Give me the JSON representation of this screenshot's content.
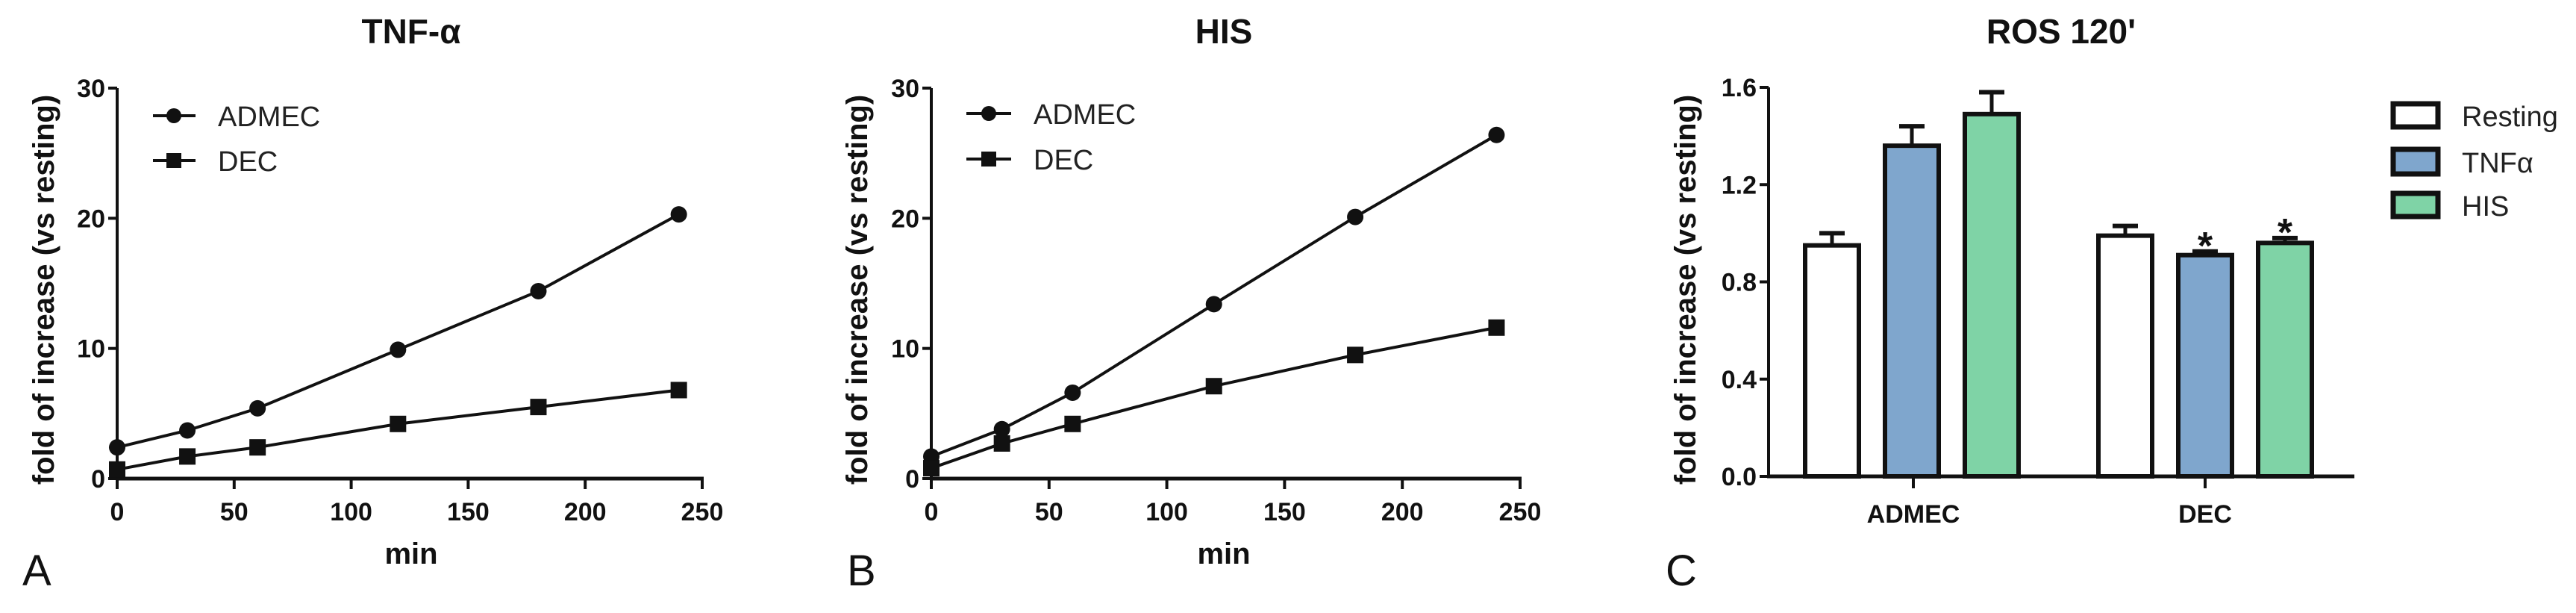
{
  "figure": {
    "background": "#ffffff",
    "panels": [
      {
        "letter": "A",
        "title": "TNF-α",
        "xlabel": "min",
        "ylabel": "fold of increase (vs resting)"
      },
      {
        "letter": "B",
        "title": "HIS",
        "xlabel": "min",
        "ylabel": "fold of increase (vs resting)"
      },
      {
        "letter": "C",
        "title": "ROS 120'",
        "xlabel": "",
        "ylabel": "fold of increase (vs resting)"
      }
    ]
  },
  "colors": {
    "resting": "#ffffff",
    "tnfa": "#7fa6cd",
    "his": "#7fd3a6",
    "line": "#111111"
  },
  "chart_data": [
    {
      "panel": "A",
      "type": "line",
      "title": "TNF-α",
      "xlabel": "min",
      "ylabel": "fold of increase (vs resting)",
      "x": [
        0,
        30,
        60,
        120,
        180,
        240
      ],
      "xlim": [
        0,
        250
      ],
      "ylim": [
        0,
        30
      ],
      "xticks": [
        0,
        50,
        100,
        150,
        200,
        250
      ],
      "yticks": [
        0,
        10,
        20,
        30
      ],
      "grid": false,
      "legend_position": "upper left",
      "series": [
        {
          "name": "ADMEC",
          "marker": "circle",
          "values": [
            2.4,
            3.7,
            5.4,
            9.9,
            14.4,
            20.3
          ]
        },
        {
          "name": "DEC",
          "marker": "square",
          "values": [
            0.7,
            1.7,
            2.4,
            4.2,
            5.5,
            6.8
          ]
        }
      ]
    },
    {
      "panel": "B",
      "type": "line",
      "title": "HIS",
      "xlabel": "min",
      "ylabel": "fold of increase (vs resting)",
      "x": [
        0,
        30,
        60,
        120,
        180,
        240
      ],
      "xlim": [
        0,
        250
      ],
      "ylim": [
        0,
        30
      ],
      "xticks": [
        0,
        50,
        100,
        150,
        200,
        250
      ],
      "yticks": [
        0,
        10,
        20,
        30
      ],
      "grid": false,
      "legend_position": "upper left",
      "series": [
        {
          "name": "ADMEC",
          "marker": "circle",
          "values": [
            1.7,
            3.8,
            6.6,
            13.4,
            20.1,
            26.4
          ]
        },
        {
          "name": "DEC",
          "marker": "square",
          "values": [
            0.8,
            2.7,
            4.2,
            7.1,
            9.5,
            11.6
          ]
        }
      ]
    },
    {
      "panel": "C",
      "type": "bar",
      "title": "ROS 120'",
      "xlabel": "",
      "ylabel": "fold of increase (vs resting)",
      "categories": [
        "ADMEC",
        "DEC"
      ],
      "ylim": [
        0,
        1.6
      ],
      "yticks": [
        "0.0",
        "0.4",
        "0.8",
        "1.2",
        "1.6"
      ],
      "grid": false,
      "legend_position": "right",
      "series": [
        {
          "name": "Resting",
          "color": "#ffffff",
          "values": [
            0.95,
            0.99
          ],
          "errors": [
            0.05,
            0.04
          ]
        },
        {
          "name": "TNFα",
          "color": "#7fa6cd",
          "values": [
            1.36,
            0.91
          ],
          "errors": [
            0.08,
            0.015
          ]
        },
        {
          "name": "HIS",
          "color": "#7fd3a6",
          "values": [
            1.49,
            0.96
          ],
          "errors": [
            0.09,
            0.02
          ]
        }
      ],
      "annotations": [
        {
          "text": "*",
          "category": "DEC",
          "series": "TNFα"
        },
        {
          "text": "*",
          "category": "DEC",
          "series": "HIS"
        }
      ]
    }
  ]
}
